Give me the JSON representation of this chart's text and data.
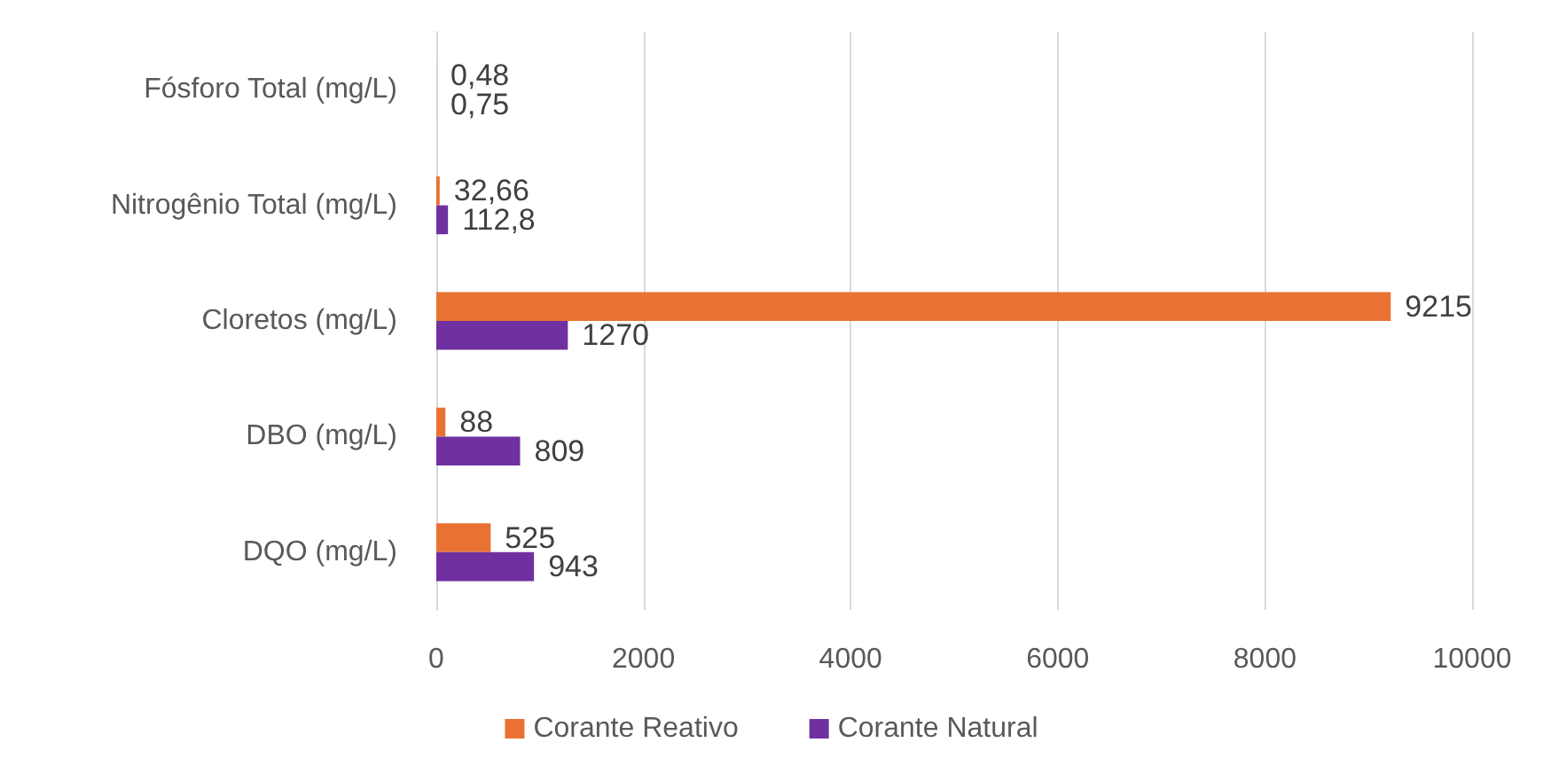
{
  "chart_data": {
    "type": "bar",
    "orientation": "horizontal",
    "categories": [
      "Fósforo Total (mg/L)",
      "Nitrogênio Total (mg/L)",
      "Cloretos (mg/L)",
      "DBO (mg/L)",
      "DQO (mg/L)"
    ],
    "series": [
      {
        "name": "Corante Reativo",
        "color": "#e97132",
        "values": [
          0.48,
          32.66,
          9215,
          88,
          525
        ],
        "value_labels": [
          "0,48",
          "32,66",
          "9215",
          "88",
          "525"
        ]
      },
      {
        "name": "Corante Natural",
        "color": "#7030a0",
        "values": [
          0.75,
          112.8,
          1270,
          809,
          943
        ],
        "value_labels": [
          "0,75",
          "112,8",
          "1270",
          "809",
          "943"
        ]
      }
    ],
    "xlim": [
      0,
      10000
    ],
    "xticks": [
      0,
      2000,
      4000,
      6000,
      8000,
      10000
    ],
    "grid": "x",
    "legend": "bottom"
  }
}
